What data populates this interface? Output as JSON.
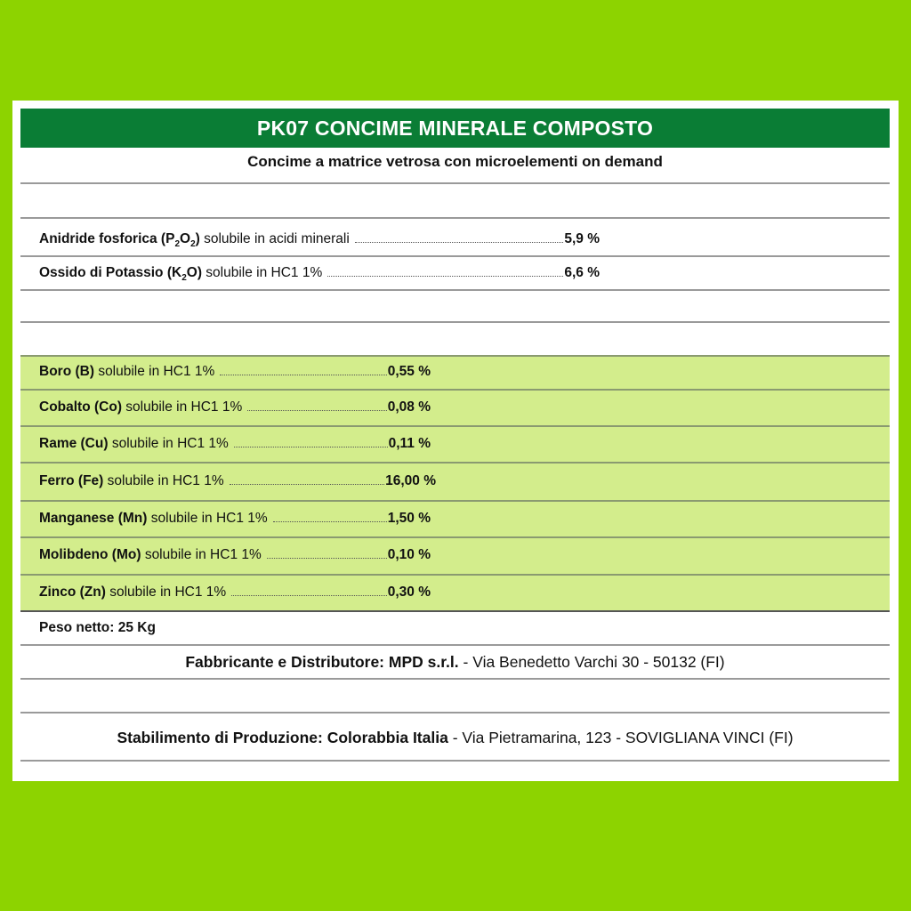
{
  "title": "PK07 CONCIME MINERALE COMPOSTO",
  "subtitle": "Concime a matrice vetrosa con microelementi on demand",
  "macro": [
    {
      "name_bold_a": "Anidride fosforica (P",
      "sub1": "2",
      "name_bold_b": "O",
      "sub2": "2",
      "name_bold_c": ")",
      "desc": "solubile in acidi minerali",
      "value": "5,9 %"
    },
    {
      "name_bold_a": "Ossido di Potassio (K",
      "sub1": "2",
      "name_bold_b": "O)",
      "desc": "solubile in HC1 1%",
      "value": "6,6 %"
    }
  ],
  "micro": [
    {
      "name": "Boro (B)",
      "desc": "solubile in HC1 1%",
      "value": "0,55 %"
    },
    {
      "name": "Cobalto (Co)",
      "desc": "solubile in HC1 1%",
      "value": "0,08 %"
    },
    {
      "name": "Rame (Cu)",
      "desc": "solubile in HC1 1%",
      "value": "0,11 %"
    },
    {
      "name": "Ferro (Fe)",
      "desc": "solubile in HC1 1%",
      "value": "16,00 %"
    },
    {
      "name": "Manganese (Mn)",
      "desc": "solubile in HC1 1%",
      "value": "1,50 %"
    },
    {
      "name": "Molibdeno (Mo)",
      "desc": "solubile in HC1 1%",
      "value": "0,10 %"
    },
    {
      "name": "Zinco (Zn)",
      "desc": "solubile in HC1 1%",
      "value": "0,30 %"
    }
  ],
  "net_weight": "Peso netto: 25 Kg",
  "manufacturer": {
    "label": "Fabbricante e Distributore: MPD s.r.l.",
    "address": " - Via Benedetto Varchi 30 - 50132 (FI)"
  },
  "plant": {
    "label": "Stabilimento di Produzione: Colorabbia Italia",
    "address": " - Via Pietramarina, 123 - SOVIGLIANA VINCI (FI)"
  },
  "colors": {
    "background": "#8dd300",
    "title_bar": "#0a7d35",
    "micro_rows": "#d3ed8c"
  }
}
